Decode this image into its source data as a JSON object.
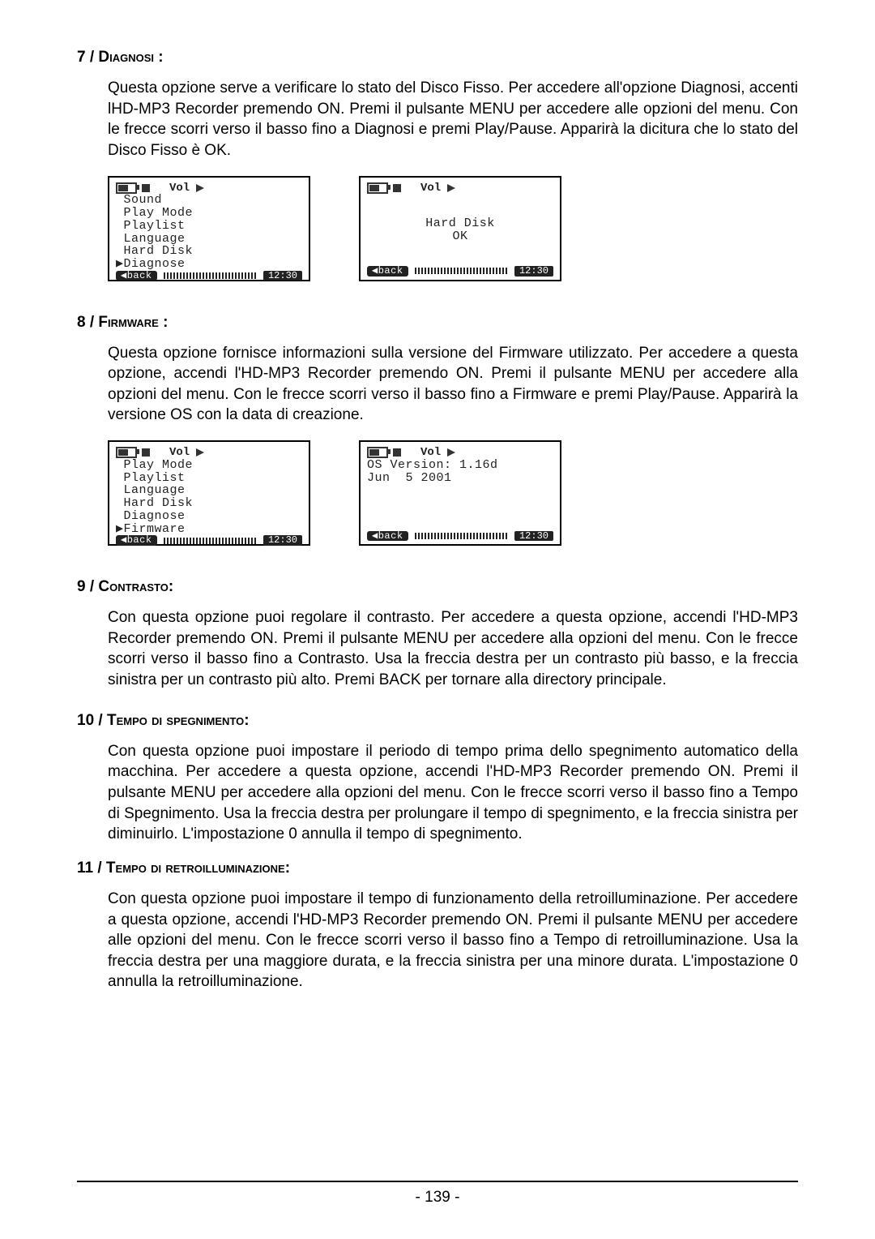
{
  "page_number": "- 139 -",
  "sections": [
    {
      "num": "7 / ",
      "title": "Diagnosi :",
      "body": "Questa opzione serve a verificare lo stato del Disco Fisso. Per accedere all'opzione Diagnosi, accenti lHD-MP3 Recorder premendo ON. Premi il pulsante MENU per accedere alle opzioni del menu. Con le frecce scorri verso il basso fino a Diagnosi e premi Play/Pause. Apparirà la dicitura che lo stato del Disco Fisso è OK."
    },
    {
      "num": "8 / ",
      "title": "Firmware :",
      "body": "Questa opzione fornisce informazioni sulla versione del Firmware utilizzato. Per accedere a questa opzione, accendi l'HD-MP3 Recorder premendo ON. Premi il pulsante MENU per accedere alla opzioni del menu. Con le frecce scorri verso il basso fino a Firmware e premi Play/Pause. Apparirà la versione OS con la data di creazione."
    },
    {
      "num": "9 / ",
      "title": "Contrasto:",
      "body": "Con questa opzione puoi regolare il contrasto. Per accedere a questa opzione, accendi l'HD-MP3 Recorder premendo ON. Premi il pulsante MENU per accedere alla opzioni del menu. Con le frecce scorri verso il basso fino a Contrasto. Usa la freccia destra per un contrasto più basso, e la freccia sinistra per un contrasto più alto. Premi BACK per tornare alla directory principale."
    },
    {
      "num": "10 / ",
      "title": "Tempo di spegnimento:",
      "body": "Con questa opzione puoi impostare il periodo di tempo prima dello spegnimento automatico della macchina.  Per accedere a questa opzione, accendi l'HD-MP3 Recorder premendo ON. Premi il pulsante MENU per accedere alla opzioni del menu. Con le frecce scorri verso il basso fino a Tempo di Spegnimento. Usa la freccia destra per prolungare il tempo di spegnimento, e la freccia sinistra per diminuirlo. L'impostazione 0 annulla il tempo di spegnimento."
    },
    {
      "num": "11 / ",
      "title": "Tempo di retroilluminazione:",
      "body": "Con questa opzione puoi impostare il tempo di funzionamento della retroilluminazione. Per accedere a questa opzione, accendi l'HD-MP3 Recorder premendo ON. Premi il pulsante MENU per accedere alle opzioni del menu. Con le frecce scorri verso il basso fino a Tempo di retroilluminazione. Usa la freccia destra per una maggiore durata, e la freccia sinistra per una minore durata. L'impostazione 0 annulla la retroilluminazione."
    }
  ],
  "lcd": {
    "vol_label": "Vol",
    "back_label": "◀back",
    "time": "12:30",
    "s7_left_menu": " Sound\n Play Mode\n Playlist\n Language\n Hard Disk\n▶Diagnose",
    "s7_right_center": "Hard Disk\nOK",
    "s8_left_menu": " Play Mode\n Playlist\n Language\n Hard Disk\n Diagnose\n▶Firmware",
    "s8_right_menu": "OS Version: 1.16d\nJun  5 2001"
  }
}
